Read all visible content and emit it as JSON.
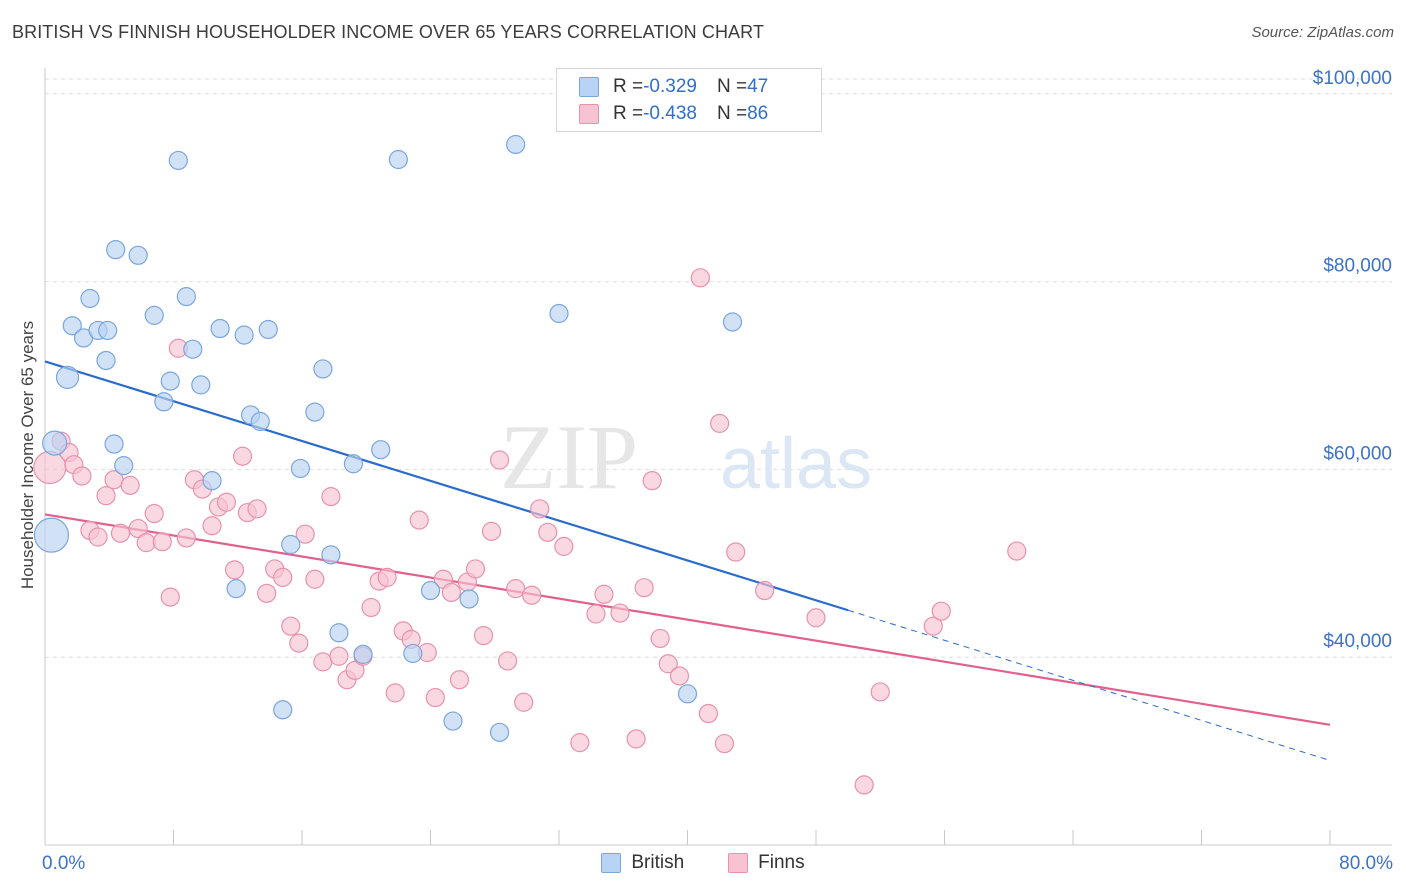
{
  "title": "BRITISH VS FINNISH HOUSEHOLDER INCOME OVER 65 YEARS CORRELATION CHART",
  "source": "Source: ZipAtlas.com",
  "watermark": {
    "zip": "ZIP",
    "atlas": "atlas"
  },
  "legend_top": [
    {
      "r_label": "R = ",
      "r_value": "-0.329",
      "n_label": "N = ",
      "n_value": "47"
    },
    {
      "r_label": "R = ",
      "r_value": "-0.438",
      "n_label": "N = ",
      "n_value": "86"
    }
  ],
  "colors": {
    "british_fill": "#b8d3f3",
    "british_stroke": "#7aa6dd",
    "british_line": "#2a6ccc",
    "finns_fill": "#f7c3d3",
    "finns_stroke": "#e892ad",
    "finns_line": "#e2608d",
    "axis_text": "#3d72c9",
    "grid": "#dedede"
  },
  "chart_data": {
    "type": "scatter",
    "xlabel": "",
    "ylabel": "Householder Income Over 65 years",
    "xlim": [
      0,
      80
    ],
    "ylim": [
      20000,
      102000
    ],
    "x_tick_labels": [
      "0.0%",
      "80.0%"
    ],
    "y_ticks": [
      40000,
      60000,
      80000,
      100000
    ],
    "y_tick_labels": [
      "$40,000",
      "$60,000",
      "$80,000",
      "$100,000"
    ],
    "grid": "horizontal dashed",
    "legend_position": "top-center and bottom",
    "series": [
      {
        "name": "British",
        "r": -0.329,
        "n": 47,
        "trend": {
          "x0": 0,
          "y0": 71500,
          "x1": 50,
          "y1": 45000,
          "dashed_to_x": 80,
          "dashed_to_y": 29000
        },
        "points": [
          [
            0.4,
            53000
          ],
          [
            0.6,
            62800
          ],
          [
            1.4,
            69800
          ],
          [
            1.7,
            75300
          ],
          [
            2.4,
            74000
          ],
          [
            2.8,
            78200
          ],
          [
            3.3,
            74800
          ],
          [
            3.8,
            71600
          ],
          [
            3.9,
            74800
          ],
          [
            4.3,
            62700
          ],
          [
            4.4,
            83400
          ],
          [
            4.9,
            60400
          ],
          [
            5.8,
            82800
          ],
          [
            6.8,
            76400
          ],
          [
            7.4,
            67200
          ],
          [
            7.8,
            69400
          ],
          [
            8.3,
            92900
          ],
          [
            8.8,
            78400
          ],
          [
            9.2,
            72800
          ],
          [
            9.7,
            69000
          ],
          [
            10.4,
            58800
          ],
          [
            10.9,
            75000
          ],
          [
            11.9,
            47300
          ],
          [
            12.4,
            74300
          ],
          [
            12.8,
            65800
          ],
          [
            13.4,
            65100
          ],
          [
            13.9,
            74900
          ],
          [
            14.8,
            34400
          ],
          [
            15.3,
            52000
          ],
          [
            15.9,
            60100
          ],
          [
            16.8,
            66100
          ],
          [
            17.3,
            70700
          ],
          [
            17.8,
            50900
          ],
          [
            18.3,
            42600
          ],
          [
            19.2,
            60600
          ],
          [
            19.8,
            40300
          ],
          [
            20.9,
            62100
          ],
          [
            22.0,
            93000
          ],
          [
            22.9,
            40400
          ],
          [
            24.0,
            47100
          ],
          [
            25.4,
            33200
          ],
          [
            26.4,
            46200
          ],
          [
            28.3,
            32000
          ],
          [
            29.3,
            94600
          ],
          [
            32.0,
            76600
          ],
          [
            40.0,
            36100
          ],
          [
            42.8,
            75700
          ]
        ]
      },
      {
        "name": "Finns",
        "r": -0.438,
        "n": 86,
        "trend": {
          "x0": 0,
          "y0": 55200,
          "x1": 80,
          "y1": 32800
        },
        "points": [
          [
            0.3,
            60200
          ],
          [
            1.0,
            63000
          ],
          [
            1.5,
            61800
          ],
          [
            1.8,
            60500
          ],
          [
            2.3,
            59300
          ],
          [
            2.8,
            53500
          ],
          [
            3.3,
            52800
          ],
          [
            3.8,
            57200
          ],
          [
            4.3,
            58900
          ],
          [
            4.7,
            53200
          ],
          [
            5.3,
            58300
          ],
          [
            5.8,
            53700
          ],
          [
            6.3,
            52200
          ],
          [
            6.8,
            55300
          ],
          [
            7.3,
            52300
          ],
          [
            7.8,
            46400
          ],
          [
            8.3,
            72900
          ],
          [
            8.8,
            52700
          ],
          [
            9.3,
            58900
          ],
          [
            9.8,
            57900
          ],
          [
            10.4,
            54000
          ],
          [
            10.8,
            56000
          ],
          [
            11.3,
            56500
          ],
          [
            11.8,
            49300
          ],
          [
            12.3,
            61400
          ],
          [
            12.6,
            55400
          ],
          [
            13.2,
            55800
          ],
          [
            13.8,
            46800
          ],
          [
            14.3,
            49400
          ],
          [
            14.8,
            48500
          ],
          [
            15.3,
            43300
          ],
          [
            15.8,
            41500
          ],
          [
            16.2,
            53100
          ],
          [
            16.8,
            48300
          ],
          [
            17.3,
            39500
          ],
          [
            17.8,
            57100
          ],
          [
            18.3,
            40100
          ],
          [
            18.8,
            37600
          ],
          [
            19.3,
            38600
          ],
          [
            19.8,
            40100
          ],
          [
            20.3,
            45300
          ],
          [
            20.8,
            48100
          ],
          [
            21.3,
            48500
          ],
          [
            21.8,
            36200
          ],
          [
            22.3,
            42800
          ],
          [
            22.8,
            41900
          ],
          [
            23.3,
            54600
          ],
          [
            23.8,
            40500
          ],
          [
            24.3,
            35700
          ],
          [
            24.8,
            48300
          ],
          [
            25.3,
            46900
          ],
          [
            25.8,
            37600
          ],
          [
            26.3,
            48000
          ],
          [
            26.8,
            49400
          ],
          [
            27.3,
            42300
          ],
          [
            27.8,
            53400
          ],
          [
            28.3,
            61000
          ],
          [
            28.8,
            39600
          ],
          [
            29.3,
            47300
          ],
          [
            29.8,
            35200
          ],
          [
            30.3,
            46600
          ],
          [
            30.8,
            55800
          ],
          [
            31.3,
            53300
          ],
          [
            32.3,
            51800
          ],
          [
            33.3,
            30900
          ],
          [
            34.3,
            44600
          ],
          [
            34.8,
            46700
          ],
          [
            35.8,
            44700
          ],
          [
            36.8,
            31300
          ],
          [
            37.3,
            47400
          ],
          [
            37.8,
            58800
          ],
          [
            38.3,
            42000
          ],
          [
            38.8,
            39300
          ],
          [
            39.5,
            38000
          ],
          [
            40.8,
            80400
          ],
          [
            41.3,
            34000
          ],
          [
            42.0,
            64900
          ],
          [
            42.3,
            30800
          ],
          [
            43.0,
            51200
          ],
          [
            44.8,
            47100
          ],
          [
            48.0,
            44200
          ],
          [
            51.0,
            26400
          ],
          [
            52.0,
            36300
          ],
          [
            55.3,
            43300
          ],
          [
            55.8,
            44900
          ],
          [
            60.5,
            51300
          ]
        ]
      }
    ]
  }
}
